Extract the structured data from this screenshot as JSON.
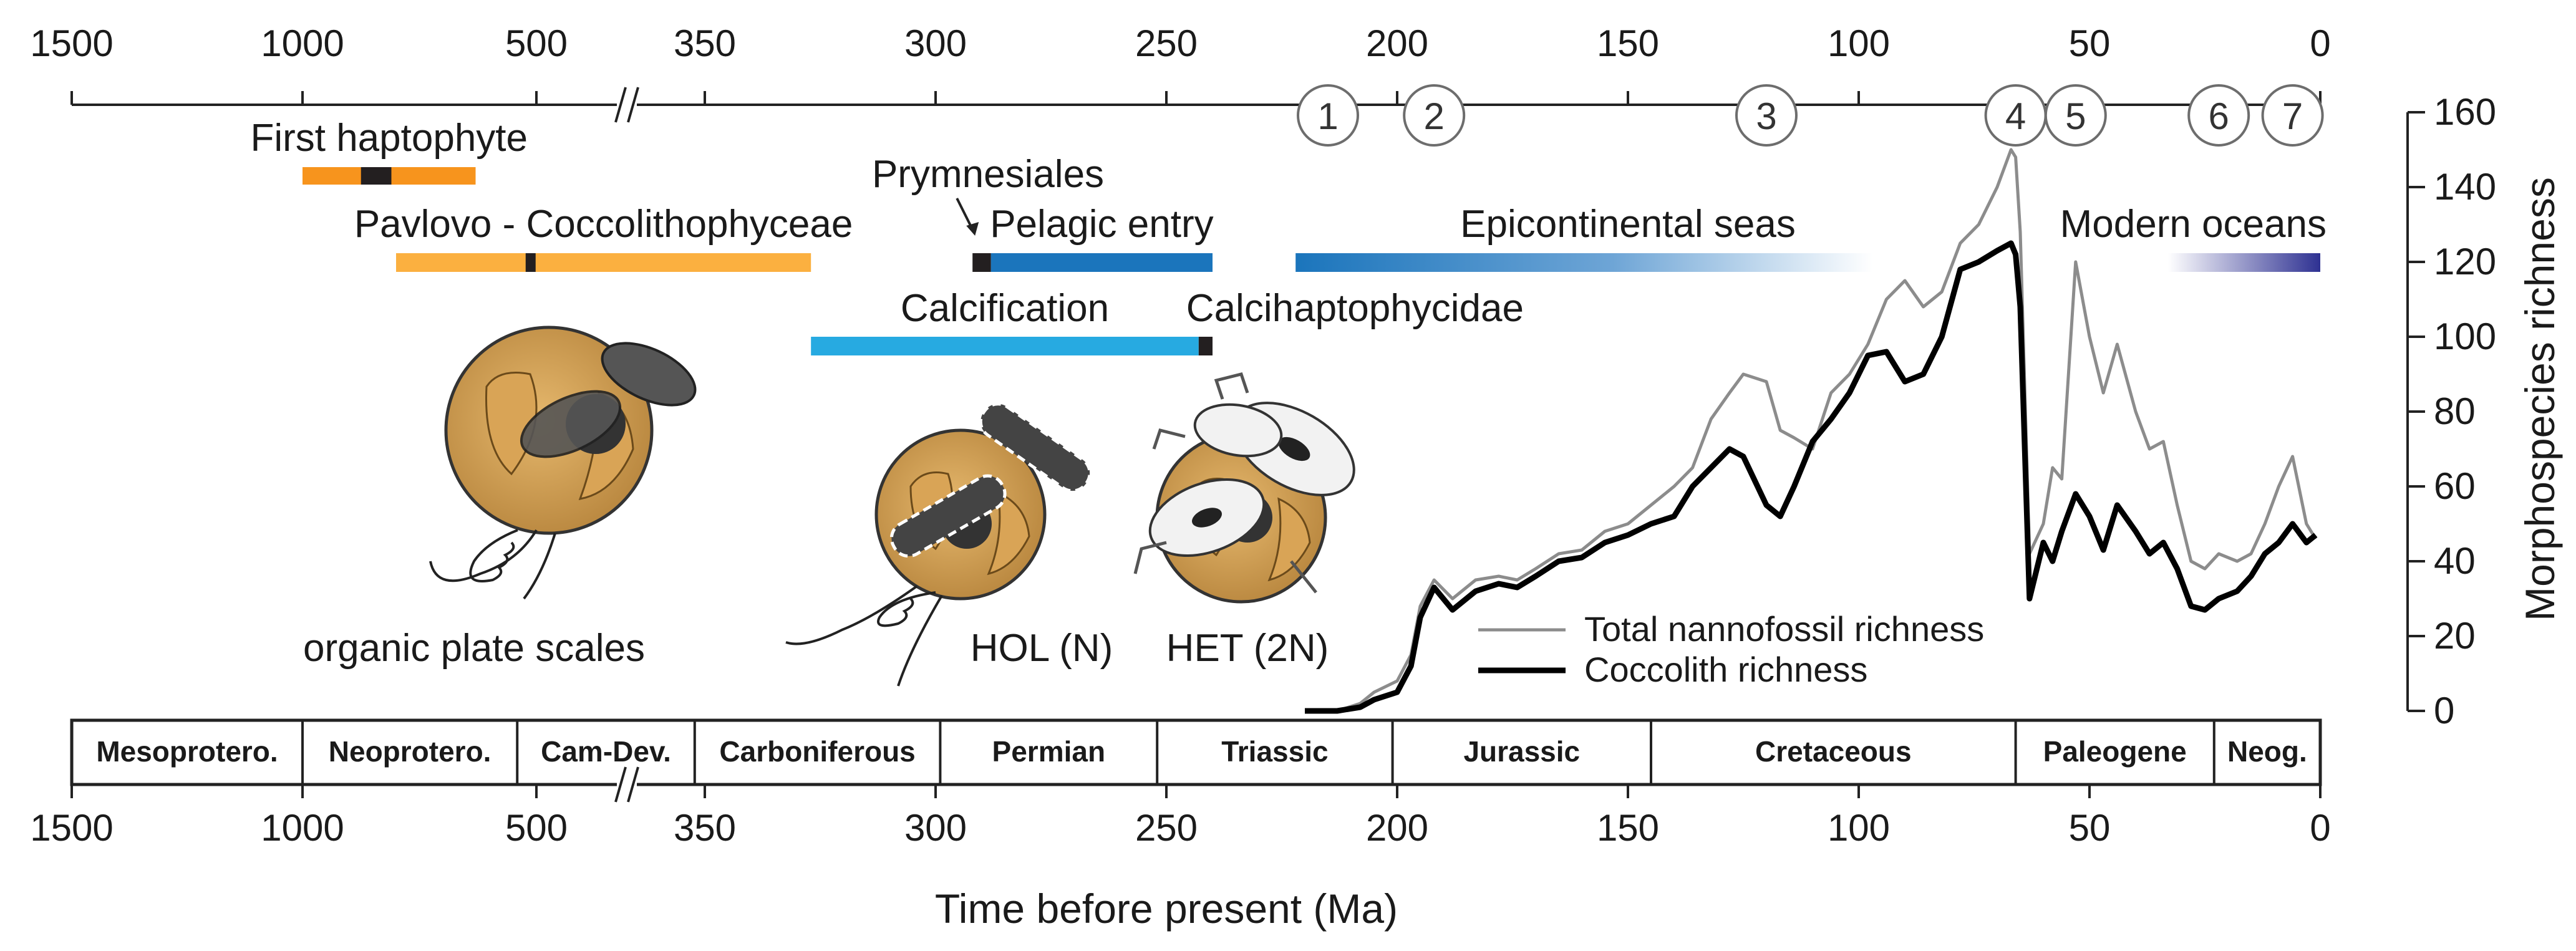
{
  "chart_data": {
    "type": "line",
    "xlabel": "Time before present (Ma)",
    "ylabel": "Morphospecies richness",
    "ylim": [
      0,
      160
    ],
    "yticks": [
      0,
      20,
      40,
      60,
      80,
      100,
      120,
      140,
      160
    ],
    "x_ticks_primary": [
      {
        "label": "1500",
        "value": 1500
      },
      {
        "label": "1000",
        "value": 1000
      },
      {
        "label": "500",
        "value": 500
      },
      {
        "label": "350",
        "value": 350
      },
      {
        "label": "300",
        "value": 300
      },
      {
        "label": "250",
        "value": 250
      },
      {
        "label": "200",
        "value": 200
      },
      {
        "label": "150",
        "value": 150
      },
      {
        "label": "100",
        "value": 100
      },
      {
        "label": "50",
        "value": 50
      },
      {
        "label": "0",
        "value": 0
      }
    ],
    "axis_break": "between 500 and 350 Ma",
    "series": [
      {
        "name": "Total nannofossil richness",
        "color": "#8c8c8c",
        "x": [
          220,
          213,
          208,
          205,
          200,
          197,
          195,
          192,
          188,
          183,
          178,
          174,
          170,
          165,
          160,
          155,
          150,
          145,
          140,
          136,
          132,
          128,
          125,
          120,
          117,
          114,
          110,
          106,
          102,
          98,
          94,
          90,
          86,
          82,
          78,
          74,
          70,
          67,
          66,
          65,
          63,
          60,
          58,
          56,
          53,
          50,
          47,
          44,
          40,
          37,
          34,
          31,
          28,
          25,
          22,
          18,
          15,
          12,
          9,
          6,
          3,
          1
        ],
        "y": [
          0,
          0,
          2,
          5,
          8,
          15,
          28,
          35,
          30,
          35,
          36,
          35,
          38,
          42,
          43,
          48,
          50,
          55,
          60,
          65,
          78,
          85,
          90,
          88,
          75,
          73,
          70,
          85,
          90,
          98,
          110,
          115,
          108,
          112,
          125,
          130,
          140,
          150,
          148,
          128,
          42,
          50,
          65,
          62,
          120,
          100,
          85,
          98,
          80,
          70,
          72,
          55,
          40,
          38,
          42,
          40,
          42,
          50,
          60,
          68,
          50,
          46
        ]
      },
      {
        "name": "Coccolith richness",
        "color": "#000000",
        "x": [
          220,
          213,
          208,
          205,
          200,
          197,
          195,
          192,
          188,
          183,
          178,
          174,
          170,
          165,
          160,
          155,
          150,
          145,
          140,
          136,
          132,
          128,
          125,
          120,
          117,
          114,
          110,
          106,
          102,
          98,
          94,
          90,
          86,
          82,
          78,
          74,
          70,
          67,
          66,
          65,
          63,
          60,
          58,
          56,
          53,
          50,
          47,
          44,
          40,
          37,
          34,
          31,
          28,
          25,
          22,
          18,
          15,
          12,
          9,
          6,
          3,
          1
        ],
        "y": [
          0,
          0,
          1,
          3,
          5,
          12,
          25,
          33,
          27,
          32,
          34,
          33,
          36,
          40,
          41,
          45,
          47,
          50,
          52,
          60,
          65,
          70,
          68,
          55,
          52,
          60,
          72,
          78,
          85,
          95,
          96,
          88,
          90,
          100,
          118,
          120,
          123,
          125,
          122,
          108,
          30,
          45,
          40,
          48,
          58,
          52,
          43,
          55,
          48,
          42,
          45,
          38,
          28,
          27,
          30,
          32,
          36,
          42,
          45,
          50,
          45,
          47
        ]
      }
    ],
    "legend_position": "bottom-center",
    "events": [
      {
        "label": "1",
        "x": 215
      },
      {
        "label": "2",
        "x": 192
      },
      {
        "label": "3",
        "x": 120
      },
      {
        "label": "4",
        "x": 66
      },
      {
        "label": "5",
        "x": 53
      },
      {
        "label": "6",
        "x": 22
      },
      {
        "label": "7",
        "x": 6
      }
    ],
    "bars": [
      {
        "label": "First haptophyte",
        "start": 1000,
        "end": 630,
        "color": "#f7941d",
        "marker_start": 875,
        "marker_end": 810
      },
      {
        "label": "Pavlovo - Coccolithophyceae",
        "start": 800,
        "end": 327,
        "color": "#fbb040",
        "marker_start": 523,
        "marker_end": 510
      },
      {
        "label": "Prymnesiales",
        "start": 292,
        "end": 288,
        "color": "#231f20"
      },
      {
        "label": "Pelagic entry",
        "start": 288,
        "end": 240,
        "color": "#1b75bc"
      },
      {
        "label": "Epicontinental seas",
        "start": 222,
        "end": 97,
        "gradient": [
          "#1b75bc",
          "#ffffff"
        ]
      },
      {
        "label": "Calcification",
        "start": 327,
        "end": 243,
        "color": "#27aae1"
      },
      {
        "label": "Calcihaptophycidae",
        "start": 243,
        "end": 240,
        "color": "#231f20"
      },
      {
        "label": "Modern oceans",
        "start": 33,
        "end": 0,
        "gradient": [
          "#ffffff",
          "#2e3192"
        ]
      }
    ],
    "periods": [
      {
        "label": "Mesoprotero.",
        "start": 1500,
        "end": 1000
      },
      {
        "label": "Neoprotero.",
        "start": 1000,
        "end": 541
      },
      {
        "label": "Cam-Dev.",
        "start": 541,
        "end": 359
      },
      {
        "label": "Carboniferous",
        "start": 359,
        "end": 299
      },
      {
        "label": "Permian",
        "start": 299,
        "end": 252
      },
      {
        "label": "Triassic",
        "start": 252,
        "end": 201
      },
      {
        "label": "Jurassic",
        "start": 201,
        "end": 145
      },
      {
        "label": "Cretaceous",
        "start": 145,
        "end": 66
      },
      {
        "label": "Paleogene",
        "start": 66,
        "end": 23
      },
      {
        "label": "Neog.",
        "start": 23,
        "end": 0
      }
    ],
    "illustrations": [
      {
        "caption": "organic plate scales"
      },
      {
        "caption": "HOL (N)"
      },
      {
        "caption": "HET (2N)"
      }
    ]
  }
}
